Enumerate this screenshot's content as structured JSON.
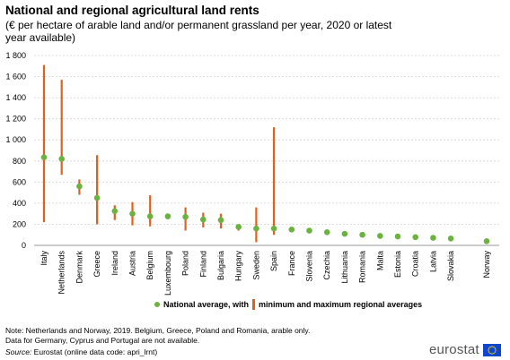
{
  "title": "National and regional agricultural land rents",
  "subtitle": "(€ per hectare of arable land and/or permanent grassland per year, 2020 or latest year available)",
  "colors": {
    "national": "#6bb23f",
    "range": "#e3601c",
    "grid": "#dcdcdc"
  },
  "legend": {
    "national_label": "National average, with",
    "range_label": "minimum and maximum regional averages"
  },
  "notes": {
    "line1": "Note: Netherlands and Norway, 2019. Belgium, Greece, Poland and Romania, arable only.",
    "line2": "Data for Germany, Cyprus and Portugal are not available.",
    "source_label": "Source:",
    "source_text": "Eurostat (online data code: apri_lrnt)"
  },
  "brand": {
    "name": "eurostat",
    "logo_icon": "eu-flag-icon"
  },
  "chart_data": {
    "type": "scatter",
    "title": "National and regional agricultural land rents",
    "subtitle": "(€ per hectare of arable land and/or permanent grassland per year, 2020 or latest year available)",
    "ylim": [
      0,
      1800
    ],
    "yticks": [
      0,
      200,
      400,
      600,
      800,
      1000,
      1200,
      1400,
      1600,
      1800
    ],
    "ytick_labels": [
      "0",
      "200",
      "400",
      "600",
      "800",
      "1 000",
      "1 200",
      "1 400",
      "1 600",
      "1 800"
    ],
    "grid": true,
    "legend_position": "bottom",
    "categories": [
      "Italy",
      "Netherlands",
      "Denmark",
      "Greece",
      "Ireland",
      "Austria",
      "Belgium",
      "Luxembourg",
      "Poland",
      "Finland",
      "Bulgaria",
      "Hungary",
      "Sweden",
      "Spain",
      "France",
      "Slovenia",
      "Czechia",
      "Lithuania",
      "Romania",
      "Malta",
      "Estonia",
      "Croatia",
      "Latvia",
      "Slovakia",
      "Norway"
    ],
    "series": [
      {
        "name": "National average",
        "values": [
          835,
          820,
          560,
          450,
          325,
          300,
          275,
          275,
          270,
          245,
          240,
          175,
          160,
          160,
          150,
          140,
          125,
          110,
          100,
          90,
          85,
          78,
          72,
          65,
          40
        ]
      },
      {
        "name": "minimum regional average",
        "values": [
          220,
          670,
          480,
          200,
          240,
          190,
          180,
          null,
          140,
          170,
          160,
          140,
          30,
          100,
          null,
          null,
          null,
          null,
          null,
          null,
          null,
          null,
          null,
          50,
          null
        ]
      },
      {
        "name": "maximum regional average",
        "values": [
          1710,
          1570,
          625,
          855,
          380,
          410,
          475,
          null,
          360,
          310,
          300,
          200,
          360,
          1120,
          null,
          null,
          null,
          null,
          null,
          null,
          null,
          null,
          null,
          80,
          null
        ]
      }
    ]
  }
}
